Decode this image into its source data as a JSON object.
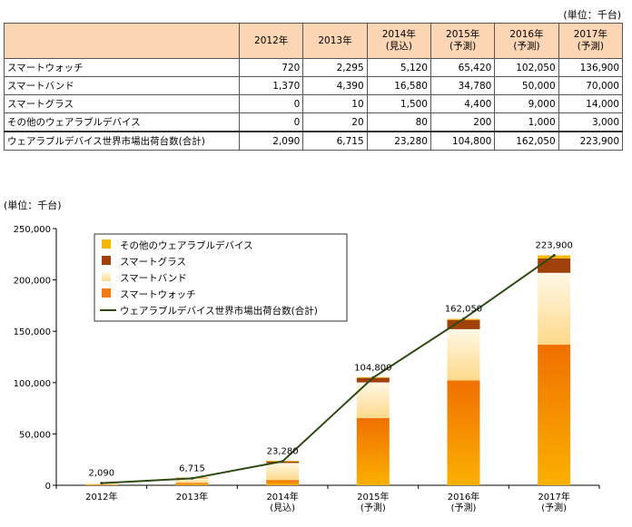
{
  "unit_label": "(単位：千台)",
  "table": {
    "columns": [
      "2012年",
      "2013年",
      "2014年\n(見込)",
      "2015年\n(予測)",
      "2016年\n(予測)",
      "2017年\n(予測)"
    ],
    "rows": [
      {
        "label": "スマートウォッチ",
        "values": [
          "720",
          "2,295",
          "5,120",
          "65,420",
          "102,050",
          "136,900"
        ]
      },
      {
        "label": "スマートバンド",
        "values": [
          "1,370",
          "4,390",
          "16,580",
          "34,780",
          "50,000",
          "70,000"
        ]
      },
      {
        "label": "スマートグラス",
        "values": [
          "0",
          "10",
          "1,500",
          "4,400",
          "9,000",
          "14,000"
        ]
      },
      {
        "label": "その他のウェアラブルデバイス",
        "values": [
          "0",
          "20",
          "80",
          "200",
          "1,000",
          "3,000"
        ]
      },
      {
        "label": "ウェアラブルデバイス世界市場出荷台数(合計)",
        "values": [
          "2,090",
          "6,715",
          "23,280",
          "104,800",
          "162,050",
          "223,900"
        ]
      }
    ]
  },
  "chart_data": {
    "type": "bar",
    "stacked": true,
    "unit_label": "(単位：千台)",
    "categories": [
      "2012年",
      "2013年",
      "2014年\n(見込)",
      "2015年\n(予測)",
      "2016年\n(予測)",
      "2017年\n(予測)"
    ],
    "ylim": [
      0,
      250000
    ],
    "yticks": [
      0,
      50000,
      100000,
      150000,
      200000,
      250000
    ],
    "ytick_labels": [
      "0",
      "50,000",
      "100,000",
      "150,000",
      "200,000",
      "250,000"
    ],
    "series": [
      {
        "name": "スマートウォッチ",
        "values": [
          720,
          2295,
          5120,
          65420,
          102050,
          136900
        ],
        "color": "#f07b10"
      },
      {
        "name": "スマートバンド",
        "values": [
          1370,
          4390,
          16580,
          34780,
          50000,
          70000
        ],
        "color": "#fde5b0"
      },
      {
        "name": "スマートグラス",
        "values": [
          0,
          10,
          1500,
          4400,
          9000,
          14000
        ],
        "color": "#a0400a"
      },
      {
        "name": "その他のウェアラブルデバイス",
        "values": [
          0,
          20,
          80,
          200,
          1000,
          3000
        ],
        "color": "#f5b800"
      }
    ],
    "total_line": {
      "name": "ウェアラブルデバイス世界市場出荷台数(合計)",
      "values": [
        2090,
        6715,
        23280,
        104800,
        162050,
        223900
      ],
      "labels": [
        "2,090",
        "6,715",
        "23,280",
        "104,800",
        "162,050",
        "223,900"
      ],
      "color": "#2e4a12"
    },
    "legend_order": [
      "その他のウェアラブルデバイス",
      "スマートグラス",
      "スマートバンド",
      "スマートウォッチ",
      "ウェアラブルデバイス世界市場出荷台数(合計)"
    ],
    "legend_position": "top-left",
    "grid": false
  }
}
